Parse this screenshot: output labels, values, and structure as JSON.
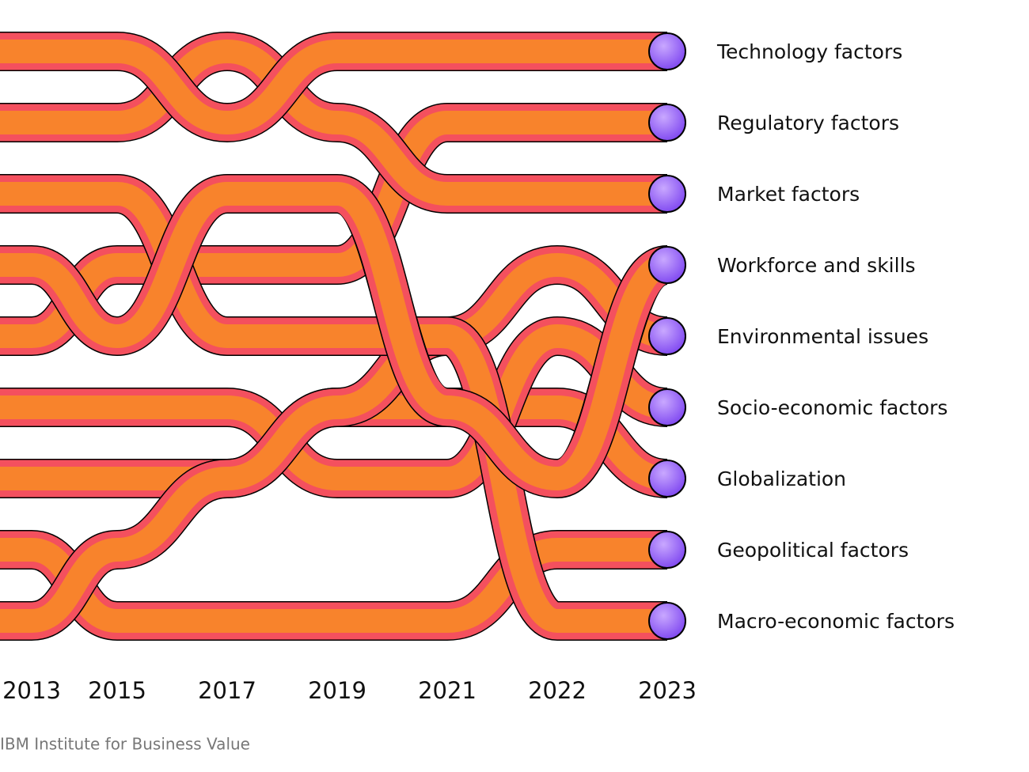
{
  "chart_data": {
    "type": "bump",
    "categories": [
      "2013",
      "2015",
      "2017",
      "2019",
      "2021",
      "2022",
      "2023"
    ],
    "ylim": [
      1,
      9
    ],
    "color": "#f8832c",
    "edge_color": "#f4505e",
    "marker_color": "#9b6bff",
    "series": [
      {
        "name": "Globalization",
        "values": [
          7,
          7,
          7,
          6,
          6,
          6,
          7
        ]
      },
      {
        "name": "Socio-economic factors",
        "values": [
          6,
          6,
          6,
          7,
          7,
          5,
          6
        ]
      },
      {
        "name": "Geopolitical factors",
        "values": [
          8,
          9,
          9,
          9,
          9,
          8,
          8
        ]
      },
      {
        "name": "Environmental issues",
        "values": [
          9,
          8,
          7,
          6,
          5,
          4,
          5
        ]
      },
      {
        "name": "Regulatory factors",
        "values": [
          5,
          4,
          4,
          4,
          2,
          2,
          2
        ]
      },
      {
        "name": "Macro-economic factors",
        "values": [
          3,
          3,
          5,
          5,
          5,
          9,
          9
        ]
      },
      {
        "name": "Workforce and skills",
        "values": [
          4,
          5,
          3,
          3,
          6,
          7,
          4
        ]
      },
      {
        "name": "Market factors",
        "values": [
          2,
          2,
          1,
          2,
          3,
          3,
          3
        ]
      },
      {
        "name": "Technology factors",
        "values": [
          1,
          1,
          2,
          1,
          1,
          1,
          1
        ]
      }
    ],
    "source": "IBM Institute for Business Value"
  }
}
